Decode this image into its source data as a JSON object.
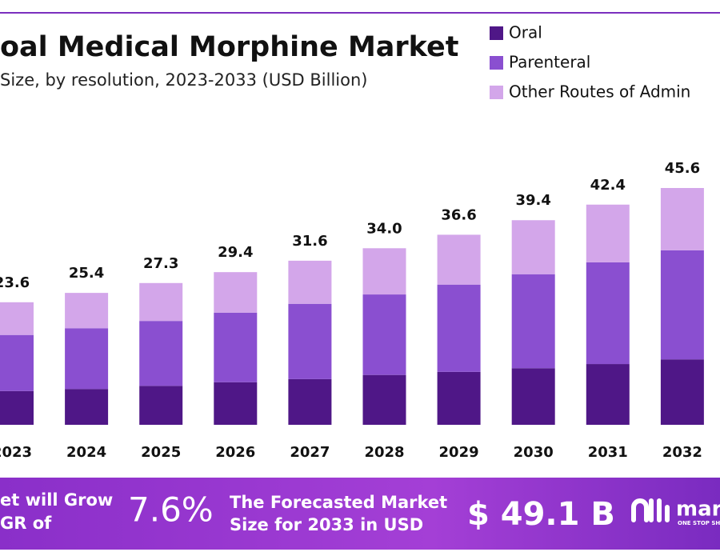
{
  "chart_data": {
    "type": "stacked_bar",
    "title": "oal Medical Morphine Market",
    "subtitle": "Size, by resolution, 2023-2033 (USD Billion)",
    "categories": [
      "2023",
      "2024",
      "2025",
      "2026",
      "2027",
      "2028",
      "2029",
      "2030",
      "2031",
      "2032"
    ],
    "series": [
      {
        "name": "Oral",
        "color": "#4f1787",
        "values": [
          6.5,
          6.9,
          7.5,
          8.2,
          8.8,
          9.6,
          10.2,
          10.9,
          11.7,
          12.6
        ]
      },
      {
        "name": "Parenteral",
        "color": "#8a4fd0",
        "values": [
          10.8,
          11.7,
          12.5,
          13.4,
          14.5,
          15.5,
          16.8,
          18.1,
          19.6,
          21.0
        ]
      },
      {
        "name": "Other Routes of Admin",
        "color": "#d3a6ea",
        "values": [
          6.3,
          6.8,
          7.3,
          7.8,
          8.3,
          8.9,
          9.6,
          10.4,
          11.1,
          12.0
        ]
      }
    ],
    "totals": [
      23.6,
      25.4,
      27.3,
      29.4,
      31.6,
      34.0,
      36.6,
      39.4,
      42.4,
      45.6
    ],
    "value_labels": [
      "23.6",
      "25.4",
      "27.3",
      "29.4",
      "31.6",
      "34.0",
      "36.6",
      "39.4",
      "42.4",
      "45.6"
    ],
    "legend": "top-right"
  },
  "banner": {
    "line1": "et will Grow",
    "line2": "GR of",
    "cagr": "7.6%",
    "forecast1": "The Forecasted Market",
    "forecast2": "Size for 2033 in USD",
    "size": "$ 49.1 B",
    "logo": "mar",
    "tagline": "ONE STOP SH"
  }
}
